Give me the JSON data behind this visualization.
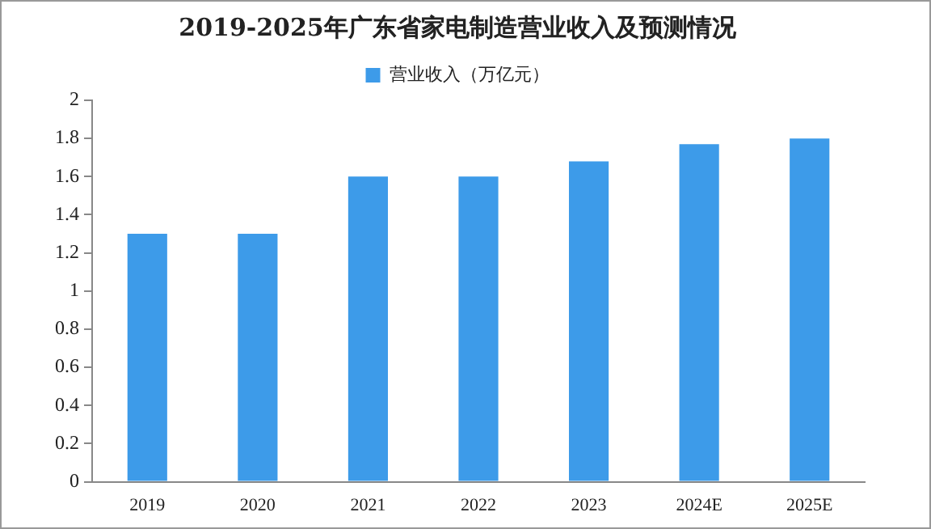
{
  "chart_data": {
    "type": "bar",
    "title": "2019-2025年广东省家电制造营业收入及预测情况",
    "categories": [
      "2019",
      "2020",
      "2021",
      "2022",
      "2023",
      "2024E",
      "2025E"
    ],
    "series": [
      {
        "name": "营业收入（万亿元）",
        "color": "#3d9be9",
        "values": [
          1.3,
          1.3,
          1.6,
          1.6,
          1.68,
          1.77,
          1.8
        ]
      }
    ],
    "ylim": [
      0,
      2
    ],
    "yticks": [
      0,
      0.2,
      0.4,
      0.6,
      0.8,
      1,
      1.2,
      1.4,
      1.6,
      1.8,
      2
    ],
    "grid": false,
    "legend": "top"
  }
}
